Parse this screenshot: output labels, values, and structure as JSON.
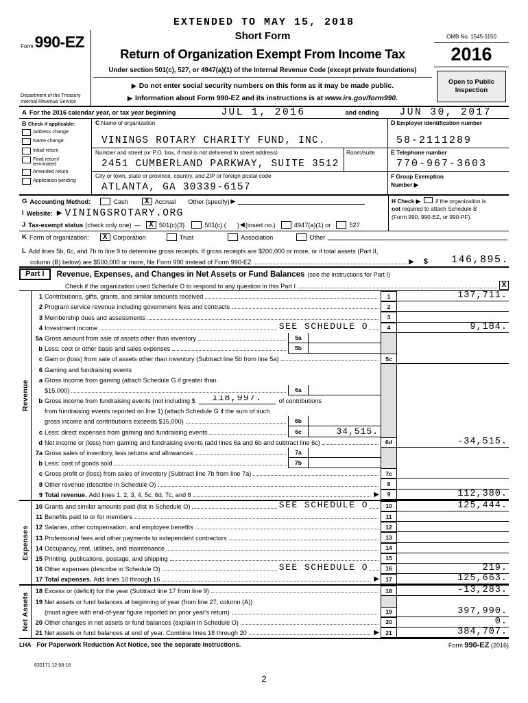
{
  "header": {
    "extended": "EXTENDED TO MAY 15, 2018",
    "form_label": "Form",
    "form_number": "990-EZ",
    "title1": "Short Form",
    "title2": "Return of Organization Exempt From Income Tax",
    "subtitle": "Under section 501(c), 527, or 4947(a)(1) of the Internal Revenue Code (except private foundations)",
    "bullet1": "Do not enter social security numbers on this form as it may be made public.",
    "bullet2_pre": "Information about Form 990-EZ and its instructions is at ",
    "bullet2_url": "www.irs.gov/form990.",
    "omb": "OMB No. 1545-1150",
    "year": "2016",
    "open_to_public": "Open to Public",
    "inspection": "Inspection",
    "dept1": "Department of the Treasury",
    "dept2": "Internal Revenue Service"
  },
  "line_a": {
    "letter": "A",
    "text": "For the 2016 calendar year, or tax year beginning",
    "begin_value": "JUL 1, 2016",
    "and_ending": "and ending",
    "end_value": "JUN 30, 2017"
  },
  "line_b": {
    "letter": "B",
    "label": "Check if applicable:",
    "items": [
      "Address change",
      "Name change",
      "Initial return",
      "Final return/ terminated",
      "Amended return",
      "Application pending"
    ]
  },
  "org": {
    "name": {
      "letter": "C",
      "label": "Name of organization",
      "value": "VININGS ROTARY CHARITY FUND, INC."
    },
    "street": {
      "label": "Number and street (or P.O. box, if mail is not delivered to street address)",
      "room_label": "Room/suite",
      "value": "2451 CUMBERLAND PARKWAY, SUITE 3512"
    },
    "city": {
      "label": "City or town, state or province, country, and ZIP or foreign postal code",
      "value": "ATLANTA, GA  30339-6157"
    },
    "ein": {
      "letter": "D",
      "label": "Employer identification number",
      "value": "58-2111289"
    },
    "phone": {
      "letter": "E",
      "label": "Telephone number",
      "value": "770-967-3603"
    },
    "group": {
      "letter": "F",
      "label": "Group Exemption",
      "label2": "Number"
    }
  },
  "line_g": {
    "letter": "G",
    "label": "Accounting Method:",
    "cash": "Cash",
    "accrual": "Accrual",
    "accrual_check": "X",
    "other": "Other (specify)"
  },
  "line_h": {
    "letter": "H",
    "check": "Check",
    "rest1": "if the organization is",
    "bold2": "not",
    "rest2": " required to attach Schedule B",
    "rest3": "(Form 990, 990-EZ, or 990-PF)."
  },
  "line_i": {
    "letter": "I",
    "label": "Website:",
    "value": "VININGSROTARY.ORG"
  },
  "line_j": {
    "letter": "J",
    "label": "Tax-exempt status",
    "note": "(check only one)",
    "dash": "—",
    "c3": "501(c)(3)",
    "c3_check": "X",
    "c_open": "501(c) (",
    "close_paren": ")",
    "insert": "(insert no.)",
    "a47": "4947(a)(1) or",
    "s527": "527"
  },
  "line_k": {
    "letter": "K",
    "label": "Form of organization:",
    "corp": "Corporation",
    "corp_check": "X",
    "trust": "Trust",
    "assoc": "Association",
    "other": "Other"
  },
  "line_l": {
    "letter": "L",
    "text1": "Add lines 5b, 6c, and 7b to line 9 to determine gross receipts. If gross receipts are $200,000 or more, or if total assets (Part II,",
    "text2": "column (B) below) are $500,000 or more, file Form 990 instead of Form 990-EZ",
    "currency": "$",
    "value": "146,895."
  },
  "part1": {
    "tag": "Part I",
    "title": "Revenue, Expenses, and Changes in Net Assets or Fund Balances",
    "title_note": "(see the instructions for Part I)",
    "check_text": "Check if the organization used Schedule O to respond to any question in this Part I",
    "check_value": "X",
    "sections": [
      {
        "label": "Revenue",
        "from": 0,
        "to": 19
      },
      {
        "label": "Expenses",
        "from": 20,
        "to": 27
      },
      {
        "label": "Net Assets",
        "from": 28,
        "to": 32
      }
    ],
    "rows": [
      {
        "n": "1",
        "d": "Contributions, gifts, grants, and similar amounts received",
        "leader": true,
        "ln": "1",
        "amt": "137,711."
      },
      {
        "n": "2",
        "d": "Program service revenue including government fees and contracts",
        "leader": true,
        "ln": "2",
        "amt": ""
      },
      {
        "n": "3",
        "d": "Membership dues and assessments",
        "leader": true,
        "ln": "3",
        "amt": ""
      },
      {
        "n": "4",
        "d": "Investment income",
        "leader": true,
        "see": "SEE SCHEDULE O",
        "ln": "4",
        "amt": "9,184."
      },
      {
        "n": "5a",
        "d": "Gross amount from sale of assets other than inventory",
        "leader": true,
        "sub": {
          "l": "5a",
          "v": ""
        },
        "ln": "",
        "amt": ""
      },
      {
        "n": "b",
        "d": "Less: cost or other basis and sales expenses",
        "leader": true,
        "sub": {
          "l": "5b",
          "v": ""
        },
        "ln": "",
        "amt": ""
      },
      {
        "n": "c",
        "d": "Gain or (loss) from sale of assets other than inventory (Subtract line 5b from line 5a)",
        "leader": true,
        "ln": "5c",
        "amt": ""
      },
      {
        "n": "6",
        "d": "Gaming and fundraising events",
        "ln": "",
        "amt": ""
      },
      {
        "n": "a",
        "d": "Gross income from gaming (attach Schedule G if greater than",
        "ln": "",
        "amt": ""
      },
      {
        "n": "",
        "d": "$15,000)",
        "leader": true,
        "sub": {
          "l": "6a",
          "v": ""
        },
        "ln": "",
        "amt": ""
      },
      {
        "n": "b",
        "d": "Gross income from fundraising events (not including $",
        "uv": "118,997.",
        "d2": "of contributions",
        "ln": "",
        "amt": ""
      },
      {
        "n": "",
        "d": "from fundraising events reported on line 1) (attach Schedule G if the sum of such",
        "ln": "",
        "amt": ""
      },
      {
        "n": "",
        "d": "gross income and contributions exceeds $15,000)",
        "leader": true,
        "sub": {
          "l": "6b",
          "v": ""
        },
        "ln": "",
        "amt": ""
      },
      {
        "n": "c",
        "d": "Less: direct expenses from gaming and fundraising events",
        "leader": true,
        "sub": {
          "l": "6c",
          "v": "34,515."
        },
        "ln": "",
        "amt": ""
      },
      {
        "n": "d",
        "d": "Net income or (loss) from gaming and fundraising events (add lines 6a and 6b and subtract line 6c)",
        "leader": true,
        "ln": "6d",
        "amt": "-34,515."
      },
      {
        "n": "7a",
        "d": "Gross sales of inventory, less returns and allowances",
        "leader": true,
        "sub": {
          "l": "7a",
          "v": ""
        },
        "ln": "",
        "amt": ""
      },
      {
        "n": "b",
        "d": "Less: cost of goods sold",
        "leader": true,
        "sub": {
          "l": "7b",
          "v": ""
        },
        "ln": "",
        "amt": ""
      },
      {
        "n": "c",
        "d": "Gross profit or (loss) from sales of inventory (Subtract line 7b from line 7a)",
        "leader": true,
        "ln": "7c",
        "amt": ""
      },
      {
        "n": "8",
        "d": "Other revenue (describe in Schedule O)",
        "leader": true,
        "ln": "8",
        "amt": ""
      },
      {
        "n": "9",
        "lead": "Total revenue.",
        "d": "Add lines 1, 2, 3, 4, 5c, 6d, 7c, and 8",
        "leader": true,
        "arrow": true,
        "ln": "9",
        "amt": "112,380."
      },
      {
        "n": "10",
        "d": "Grants and similar amounts paid (list in Schedule O)",
        "leader": true,
        "see": "SEE SCHEDULE O",
        "ln": "10",
        "amt": "125,444."
      },
      {
        "n": "11",
        "d": "Benefits paid to or for members",
        "leader": true,
        "ln": "11",
        "amt": ""
      },
      {
        "n": "12",
        "d": "Salaries, other compensation, and employee benefits",
        "leader": true,
        "ln": "12",
        "amt": ""
      },
      {
        "n": "13",
        "d": "Professional fees and other payments to independent contractors",
        "leader": true,
        "ln": "13",
        "amt": ""
      },
      {
        "n": "14",
        "d": "Occupancy, rent, utilities, and maintenance",
        "leader": true,
        "ln": "14",
        "amt": ""
      },
      {
        "n": "15",
        "d": "Printing, publications, postage, and shipping",
        "leader": true,
        "ln": "15",
        "amt": ""
      },
      {
        "n": "16",
        "d": "Other expenses (describe in Schedule O)",
        "leader": true,
        "see": "SEE SCHEDULE O",
        "ln": "16",
        "amt": "219."
      },
      {
        "n": "17",
        "lead": "Total expenses.",
        "d": "Add lines 10 through 16",
        "leader": true,
        "arrow": true,
        "ln": "17",
        "amt": "125,663."
      },
      {
        "n": "18",
        "d": "Excess or (deficit) for the year (Subtract line 17 from line 9)",
        "leader": true,
        "ln": "18",
        "amt": "-13,283."
      },
      {
        "n": "19",
        "d": "Net assets or fund balances at beginning of year (from line 27, column (A))",
        "ln": "",
        "amt": ""
      },
      {
        "n": "",
        "d": "(must agree with end-of-year figure reported on prior year's return)",
        "leader": true,
        "ln": "19",
        "amt": "397,990."
      },
      {
        "n": "20",
        "d": "Other changes in net assets or fund balances (explain in Schedule O)",
        "leader": true,
        "ln": "20",
        "amt": "0."
      },
      {
        "n": "21",
        "d": "Net assets or fund balances at end of year. Combine lines 18 through 20",
        "leader": true,
        "arrow": true,
        "ln": "21",
        "amt": "384,707."
      }
    ]
  },
  "footer": {
    "lha": "LHA",
    "notice": "For Paperwork Reduction Act Notice, see the separate instructions.",
    "form_word": "Form",
    "form_no": "990-EZ",
    "form_year": "(2016)",
    "code": "632171  12-08-16",
    "page": "2"
  }
}
